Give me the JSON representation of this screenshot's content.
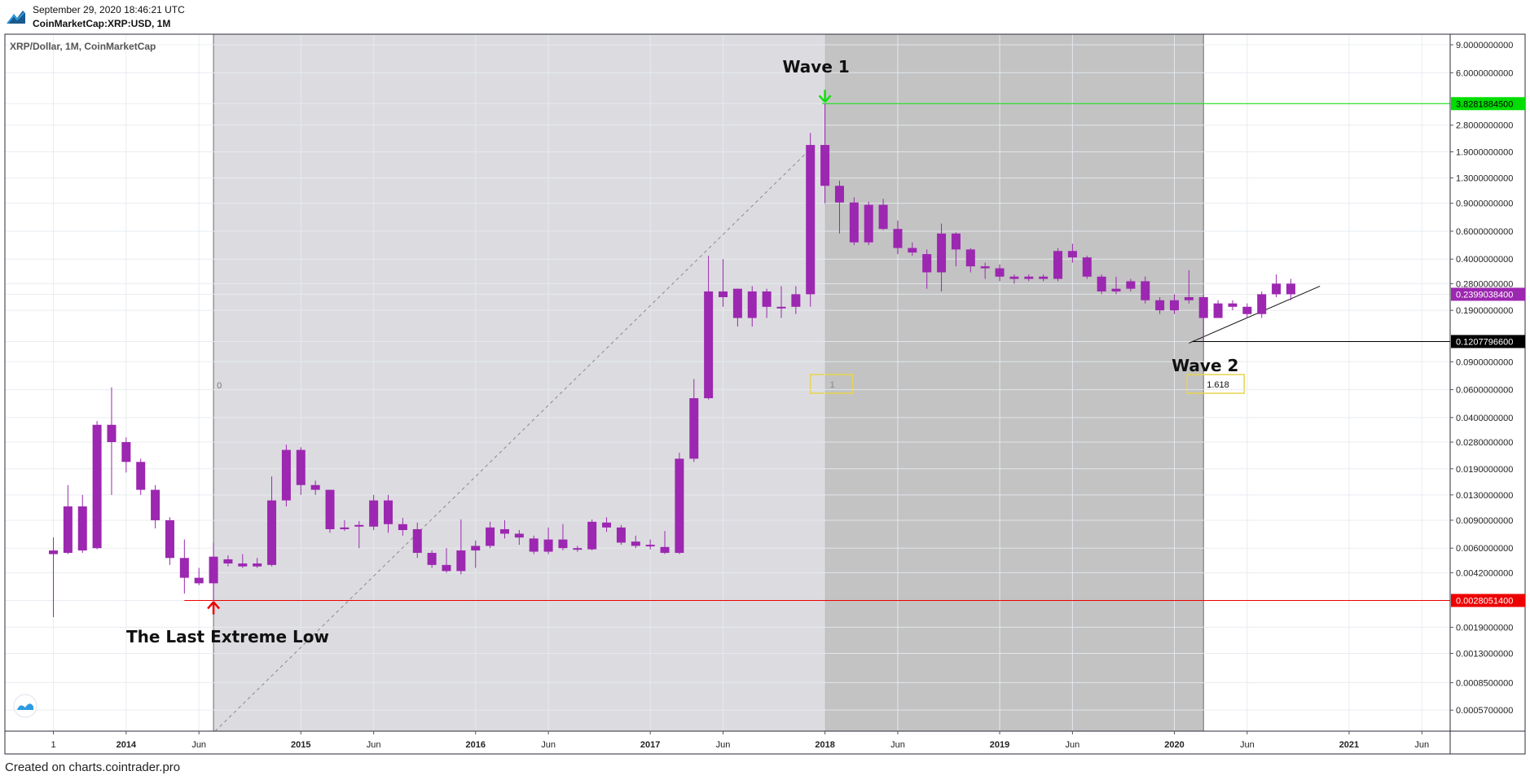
{
  "header": {
    "timestamp": "September 29, 2020 18:46:21 UTC",
    "symbol": "CoinMarketCap:XRP:USD, 1M"
  },
  "footer": {
    "credit": "Created on charts.cointrader.pro"
  },
  "chart_data": {
    "type": "candlestick",
    "title": "XRP/Dollar, 1M, CoinMarketCap",
    "y_scale": "log",
    "ylim": [
      0.00042,
      10.5
    ],
    "y_ticks": [
      "9.0000000000",
      "6.0000000000",
      "3.8281884500",
      "2.8000000000",
      "1.9000000000",
      "1.3000000000",
      "0.9000000000",
      "0.6000000000",
      "0.4000000000",
      "0.2800000000",
      "0.2399038400",
      "0.1900000000",
      "0.1207796600",
      "0.0900000000",
      "0.0600000000",
      "0.0400000000",
      "0.0280000000",
      "0.0190000000",
      "0.0130000000",
      "0.0090000000",
      "0.0060000000",
      "0.0042000000",
      "0.0028051400",
      "0.0019000000",
      "0.0013000000",
      "0.0008500000",
      "0.0005700000"
    ],
    "y_tick_values": [
      9,
      6,
      3.82818845,
      2.8,
      1.9,
      1.3,
      0.9,
      0.6,
      0.4,
      0.28,
      0.23990384,
      0.19,
      0.12077966,
      0.09,
      0.06,
      0.04,
      0.028,
      0.019,
      0.013,
      0.009,
      0.006,
      0.0042,
      0.00280514,
      0.0019,
      0.0013,
      0.00085,
      0.00057
    ],
    "x_ticks": [
      {
        "label": "1",
        "t": 0
      },
      {
        "label": "2014",
        "t": 5
      },
      {
        "label": "Jun",
        "t": 10
      },
      {
        "label": "2015",
        "t": 17
      },
      {
        "label": "Jun",
        "t": 22
      },
      {
        "label": "2016",
        "t": 29
      },
      {
        "label": "Jun",
        "t": 34
      },
      {
        "label": "2017",
        "t": 41
      },
      {
        "label": "Jun",
        "t": 46
      },
      {
        "label": "2018",
        "t": 53
      },
      {
        "label": "Jun",
        "t": 58
      },
      {
        "label": "2019",
        "t": 65
      },
      {
        "label": "Jun",
        "t": 70
      },
      {
        "label": "2020",
        "t": 77
      },
      {
        "label": "Jun",
        "t": 82
      },
      {
        "label": "2021",
        "t": 89
      },
      {
        "label": "Jun",
        "t": 94
      }
    ],
    "candles": [
      {
        "t": 0,
        "o": 0.0055,
        "h": 0.007,
        "l": 0.0022,
        "c": 0.0058
      },
      {
        "t": 1,
        "o": 0.0056,
        "h": 0.015,
        "l": 0.0055,
        "c": 0.011
      },
      {
        "t": 2,
        "o": 0.0058,
        "h": 0.013,
        "l": 0.0056,
        "c": 0.011
      },
      {
        "t": 3,
        "o": 0.006,
        "h": 0.038,
        "l": 0.0059,
        "c": 0.036
      },
      {
        "t": 4,
        "o": 0.036,
        "h": 0.062,
        "l": 0.013,
        "c": 0.028
      },
      {
        "t": 5,
        "o": 0.028,
        "h": 0.03,
        "l": 0.018,
        "c": 0.021
      },
      {
        "t": 6,
        "o": 0.021,
        "h": 0.022,
        "l": 0.013,
        "c": 0.014
      },
      {
        "t": 7,
        "o": 0.014,
        "h": 0.015,
        "l": 0.008,
        "c": 0.009
      },
      {
        "t": 8,
        "o": 0.009,
        "h": 0.0094,
        "l": 0.0047,
        "c": 0.0052
      },
      {
        "t": 9,
        "o": 0.0052,
        "h": 0.0068,
        "l": 0.0031,
        "c": 0.0039
      },
      {
        "t": 10,
        "o": 0.0039,
        "h": 0.0045,
        "l": 0.0035,
        "c": 0.0036
      },
      {
        "t": 11,
        "o": 0.0036,
        "h": 0.0065,
        "l": 0.0028051,
        "c": 0.0053
      },
      {
        "t": 12,
        "o": 0.0048,
        "h": 0.0054,
        "l": 0.0046,
        "c": 0.0051
      },
      {
        "t": 13,
        "o": 0.0048,
        "h": 0.0055,
        "l": 0.0045,
        "c": 0.0046
      },
      {
        "t": 14,
        "o": 0.0048,
        "h": 0.0052,
        "l": 0.0045,
        "c": 0.0046
      },
      {
        "t": 15,
        "o": 0.0047,
        "h": 0.017,
        "l": 0.0046,
        "c": 0.012
      },
      {
        "t": 16,
        "o": 0.012,
        "h": 0.027,
        "l": 0.011,
        "c": 0.025
      },
      {
        "t": 17,
        "o": 0.025,
        "h": 0.026,
        "l": 0.013,
        "c": 0.015
      },
      {
        "t": 18,
        "o": 0.015,
        "h": 0.016,
        "l": 0.013,
        "c": 0.014
      },
      {
        "t": 19,
        "o": 0.014,
        "h": 0.014,
        "l": 0.0075,
        "c": 0.0079
      },
      {
        "t": 20,
        "o": 0.0081,
        "h": 0.009,
        "l": 0.0077,
        "c": 0.0079
      },
      {
        "t": 21,
        "o": 0.0082,
        "h": 0.0089,
        "l": 0.006,
        "c": 0.0084
      },
      {
        "t": 22,
        "o": 0.0082,
        "h": 0.013,
        "l": 0.0078,
        "c": 0.012
      },
      {
        "t": 23,
        "o": 0.012,
        "h": 0.013,
        "l": 0.0075,
        "c": 0.0085
      },
      {
        "t": 24,
        "o": 0.0085,
        "h": 0.0093,
        "l": 0.0072,
        "c": 0.0078
      },
      {
        "t": 25,
        "o": 0.0079,
        "h": 0.0087,
        "l": 0.0052,
        "c": 0.0056
      },
      {
        "t": 26,
        "o": 0.0056,
        "h": 0.0058,
        "l": 0.0045,
        "c": 0.0047
      },
      {
        "t": 27,
        "o": 0.0047,
        "h": 0.006,
        "l": 0.0042,
        "c": 0.0043
      },
      {
        "t": 28,
        "o": 0.0043,
        "h": 0.0091,
        "l": 0.0041,
        "c": 0.0058
      },
      {
        "t": 29,
        "o": 0.0058,
        "h": 0.0067,
        "l": 0.0045,
        "c": 0.0062
      },
      {
        "t": 30,
        "o": 0.0062,
        "h": 0.0088,
        "l": 0.006,
        "c": 0.0081
      },
      {
        "t": 31,
        "o": 0.0074,
        "h": 0.009,
        "l": 0.0069,
        "c": 0.0079
      },
      {
        "t": 32,
        "o": 0.0074,
        "h": 0.0078,
        "l": 0.0063,
        "c": 0.007
      },
      {
        "t": 33,
        "o": 0.0069,
        "h": 0.0072,
        "l": 0.0055,
        "c": 0.0057
      },
      {
        "t": 34,
        "o": 0.0057,
        "h": 0.0081,
        "l": 0.0055,
        "c": 0.0068
      },
      {
        "t": 35,
        "o": 0.0068,
        "h": 0.0085,
        "l": 0.0058,
        "c": 0.006
      },
      {
        "t": 36,
        "o": 0.006,
        "h": 0.0062,
        "l": 0.0057,
        "c": 0.0059
      },
      {
        "t": 37,
        "o": 0.0059,
        "h": 0.0091,
        "l": 0.0058,
        "c": 0.0088
      },
      {
        "t": 38,
        "o": 0.0087,
        "h": 0.0094,
        "l": 0.0076,
        "c": 0.0081
      },
      {
        "t": 39,
        "o": 0.0081,
        "h": 0.0084,
        "l": 0.0063,
        "c": 0.0065
      },
      {
        "t": 40,
        "o": 0.0066,
        "h": 0.0072,
        "l": 0.006,
        "c": 0.0062
      },
      {
        "t": 41,
        "o": 0.0063,
        "h": 0.0068,
        "l": 0.0059,
        "c": 0.0062
      },
      {
        "t": 42,
        "o": 0.0061,
        "h": 0.0077,
        "l": 0.0055,
        "c": 0.0056
      },
      {
        "t": 43,
        "o": 0.0056,
        "h": 0.024,
        "l": 0.0055,
        "c": 0.022
      },
      {
        "t": 44,
        "o": 0.022,
        "h": 0.07,
        "l": 0.021,
        "c": 0.053
      },
      {
        "t": 45,
        "o": 0.053,
        "h": 0.42,
        "l": 0.052,
        "c": 0.25
      },
      {
        "t": 46,
        "o": 0.25,
        "h": 0.4,
        "l": 0.2,
        "c": 0.23
      },
      {
        "t": 47,
        "o": 0.26,
        "h": 0.26,
        "l": 0.15,
        "c": 0.17
      },
      {
        "t": 48,
        "o": 0.25,
        "h": 0.27,
        "l": 0.15,
        "c": 0.17
      },
      {
        "t": 49,
        "o": 0.25,
        "h": 0.26,
        "l": 0.17,
        "c": 0.2
      },
      {
        "t": 50,
        "o": 0.2,
        "h": 0.27,
        "l": 0.17,
        "c": 0.2
      },
      {
        "t": 51,
        "o": 0.2,
        "h": 0.27,
        "l": 0.18,
        "c": 0.24
      },
      {
        "t": 52,
        "o": 0.24,
        "h": 2.5,
        "l": 0.2,
        "c": 2.1
      },
      {
        "t": 53,
        "o": 2.1,
        "h": 3.8281884,
        "l": 0.9,
        "c": 1.16
      },
      {
        "t": 54,
        "o": 1.16,
        "h": 1.25,
        "l": 0.58,
        "c": 0.91
      },
      {
        "t": 55,
        "o": 0.91,
        "h": 0.98,
        "l": 0.49,
        "c": 0.51
      },
      {
        "t": 56,
        "o": 0.51,
        "h": 0.92,
        "l": 0.49,
        "c": 0.88
      },
      {
        "t": 57,
        "o": 0.88,
        "h": 0.96,
        "l": 0.61,
        "c": 0.62
      },
      {
        "t": 58,
        "o": 0.62,
        "h": 0.7,
        "l": 0.43,
        "c": 0.47
      },
      {
        "t": 59,
        "o": 0.47,
        "h": 0.51,
        "l": 0.42,
        "c": 0.44
      },
      {
        "t": 60,
        "o": 0.43,
        "h": 0.46,
        "l": 0.26,
        "c": 0.33
      },
      {
        "t": 61,
        "o": 0.33,
        "h": 0.67,
        "l": 0.25,
        "c": 0.58
      },
      {
        "t": 62,
        "o": 0.58,
        "h": 0.59,
        "l": 0.36,
        "c": 0.46
      },
      {
        "t": 63,
        "o": 0.46,
        "h": 0.47,
        "l": 0.33,
        "c": 0.36
      },
      {
        "t": 64,
        "o": 0.36,
        "h": 0.38,
        "l": 0.3,
        "c": 0.35
      },
      {
        "t": 65,
        "o": 0.35,
        "h": 0.37,
        "l": 0.29,
        "c": 0.31
      },
      {
        "t": 66,
        "o": 0.31,
        "h": 0.32,
        "l": 0.28,
        "c": 0.3
      },
      {
        "t": 67,
        "o": 0.3,
        "h": 0.32,
        "l": 0.29,
        "c": 0.31
      },
      {
        "t": 68,
        "o": 0.31,
        "h": 0.32,
        "l": 0.29,
        "c": 0.3
      },
      {
        "t": 69,
        "o": 0.3,
        "h": 0.47,
        "l": 0.29,
        "c": 0.45
      },
      {
        "t": 70,
        "o": 0.45,
        "h": 0.5,
        "l": 0.38,
        "c": 0.41
      },
      {
        "t": 71,
        "o": 0.41,
        "h": 0.42,
        "l": 0.3,
        "c": 0.31
      },
      {
        "t": 72,
        "o": 0.31,
        "h": 0.32,
        "l": 0.24,
        "c": 0.25
      },
      {
        "t": 73,
        "o": 0.25,
        "h": 0.31,
        "l": 0.24,
        "c": 0.26
      },
      {
        "t": 74,
        "o": 0.26,
        "h": 0.3,
        "l": 0.25,
        "c": 0.29
      },
      {
        "t": 75,
        "o": 0.29,
        "h": 0.31,
        "l": 0.21,
        "c": 0.22
      },
      {
        "t": 76,
        "o": 0.22,
        "h": 0.23,
        "l": 0.18,
        "c": 0.19
      },
      {
        "t": 77,
        "o": 0.19,
        "h": 0.24,
        "l": 0.18,
        "c": 0.22
      },
      {
        "t": 78,
        "o": 0.22,
        "h": 0.34,
        "l": 0.21,
        "c": 0.23
      },
      {
        "t": 79,
        "o": 0.23,
        "h": 0.24,
        "l": 0.1207797,
        "c": 0.17
      },
      {
        "t": 80,
        "o": 0.17,
        "h": 0.22,
        "l": 0.17,
        "c": 0.21
      },
      {
        "t": 81,
        "o": 0.21,
        "h": 0.22,
        "l": 0.19,
        "c": 0.2
      },
      {
        "t": 82,
        "o": 0.2,
        "h": 0.21,
        "l": 0.17,
        "c": 0.18
      },
      {
        "t": 83,
        "o": 0.18,
        "h": 0.25,
        "l": 0.17,
        "c": 0.24
      },
      {
        "t": 84,
        "o": 0.24,
        "h": 0.32,
        "l": 0.23,
        "c": 0.28
      },
      {
        "t": 85,
        "o": 0.28,
        "h": 0.3,
        "l": 0.22,
        "c": 0.24
      }
    ],
    "price_lines": [
      {
        "value": 3.82818845,
        "label": "3.8281884500",
        "color": "#00dd00"
      },
      {
        "value": 0.12077966,
        "label": "0.1207796600",
        "color": "#000000"
      },
      {
        "value": 0.00280514,
        "label": "0.0028051400",
        "color": "#ee0000"
      }
    ],
    "last_price": {
      "value": 0.23990384,
      "label": "0.2399038400",
      "color": "#9c27b0"
    },
    "fib_time_zones": [
      {
        "t": 11,
        "label": "0"
      },
      {
        "t": 53,
        "label": "1"
      },
      {
        "t": 79,
        "label": "1.618"
      }
    ],
    "annotations": [
      {
        "text": "Wave 1",
        "t": 53,
        "value": 3.82818845
      },
      {
        "text": "Wave 2",
        "t": 79,
        "value": 0.12077966
      },
      {
        "text": "The Last Extreme Low",
        "t": 11,
        "value": 0.00280514
      }
    ],
    "trendline": {
      "t1": 78,
      "v1": 0.118,
      "t2": 87,
      "v2": 0.27
    },
    "colors": {
      "candle": "#9c27b0",
      "zone1": "#dcdce0",
      "zone2": "#c3c3c3"
    }
  }
}
